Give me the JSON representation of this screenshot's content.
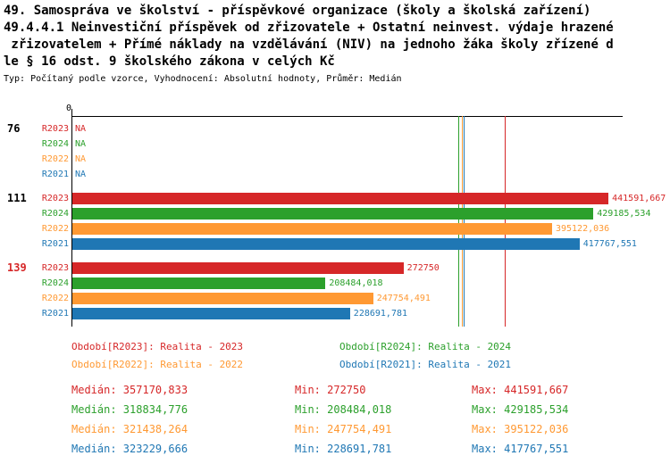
{
  "title": {
    "line1": "49. Samospráva ve školství - příspěvkové organizace (školy a školská zařízení)",
    "line2": "49.4.4.1 Neinvestiční příspěvek od zřizovatele + Ostatní neinvest. výdaje hrazené",
    "line3": " zřizovatelem + Přímé náklady na vzdělávání (NIV) na jednoho žáka školy zřízené d",
    "line4": "le § 16 odst. 9 školského zákona v celých Kč",
    "subtitle": "Typ: Počítaný podle vzorce, Vyhodnocení: Absolutní hodnoty, Průměr: Medián"
  },
  "chart_data": {
    "type": "bar",
    "orientation": "horizontal",
    "title": "49.4.4.1 Neinvestiční příspěvek od zřizovatele + Ostatní neinvest. výdaje hrazené zřizovatelem + Přímé náklady na vzdělávání (NIV) na jednoho žáka školy zřízené dle § 16 odst. 9 školského zákona v celých Kč",
    "axis_origin_label": "0",
    "xlim": [
      0,
      454000
    ],
    "grid": false,
    "series_colors": {
      "R2023": "#d62728",
      "R2024": "#2ca02c",
      "R2022": "#ff9933",
      "R2021": "#1f77b4"
    },
    "groups": [
      {
        "label": "76",
        "label_color": "#000000",
        "rows": [
          {
            "series": "R2023",
            "value": null,
            "display": "NA"
          },
          {
            "series": "R2024",
            "value": null,
            "display": "NA"
          },
          {
            "series": "R2022",
            "value": null,
            "display": "NA"
          },
          {
            "series": "R2021",
            "value": null,
            "display": "NA"
          }
        ]
      },
      {
        "label": "111",
        "label_color": "#000000",
        "rows": [
          {
            "series": "R2023",
            "value": 441591.667,
            "display": "441591,667"
          },
          {
            "series": "R2024",
            "value": 429185.534,
            "display": "429185,534"
          },
          {
            "series": "R2022",
            "value": 395122.036,
            "display": "395122,036"
          },
          {
            "series": "R2021",
            "value": 417767.551,
            "display": "417767,551"
          }
        ]
      },
      {
        "label": "139",
        "label_color": "#d62728",
        "rows": [
          {
            "series": "R2023",
            "value": 272750,
            "display": "272750"
          },
          {
            "series": "R2024",
            "value": 208484.018,
            "display": "208484,018"
          },
          {
            "series": "R2022",
            "value": 247754.491,
            "display": "247754,491"
          },
          {
            "series": "R2021",
            "value": 228691.781,
            "display": "228691,781"
          }
        ]
      }
    ],
    "median_lines": [
      {
        "series": "R2023",
        "value": 357170.833
      },
      {
        "series": "R2024",
        "value": 318834.776
      },
      {
        "series": "R2022",
        "value": 321438.264
      },
      {
        "series": "R2021",
        "value": 323229.666
      }
    ]
  },
  "legend": {
    "items": [
      {
        "series": "R2023",
        "label": "Období[R2023]: Realita - 2023"
      },
      {
        "series": "R2024",
        "label": "Období[R2024]: Realita - 2024"
      },
      {
        "series": "R2022",
        "label": "Období[R2022]: Realita - 2022"
      },
      {
        "series": "R2021",
        "label": "Období[R2021]: Realita - 2021"
      }
    ]
  },
  "stats": {
    "rows": [
      {
        "series": "R2023",
        "median_label": "Medián: 357170,833",
        "min_label": "Min: 272750",
        "max_label": "Max: 441591,667"
      },
      {
        "series": "R2024",
        "median_label": "Medián: 318834,776",
        "min_label": "Min: 208484,018",
        "max_label": "Max: 429185,534"
      },
      {
        "series": "R2022",
        "median_label": "Medián: 321438,264",
        "min_label": "Min: 247754,491",
        "max_label": "Max: 395122,036"
      },
      {
        "series": "R2021",
        "median_label": "Medián: 323229,666",
        "min_label": "Min: 228691,781",
        "max_label": "Max: 417767,551"
      }
    ]
  }
}
